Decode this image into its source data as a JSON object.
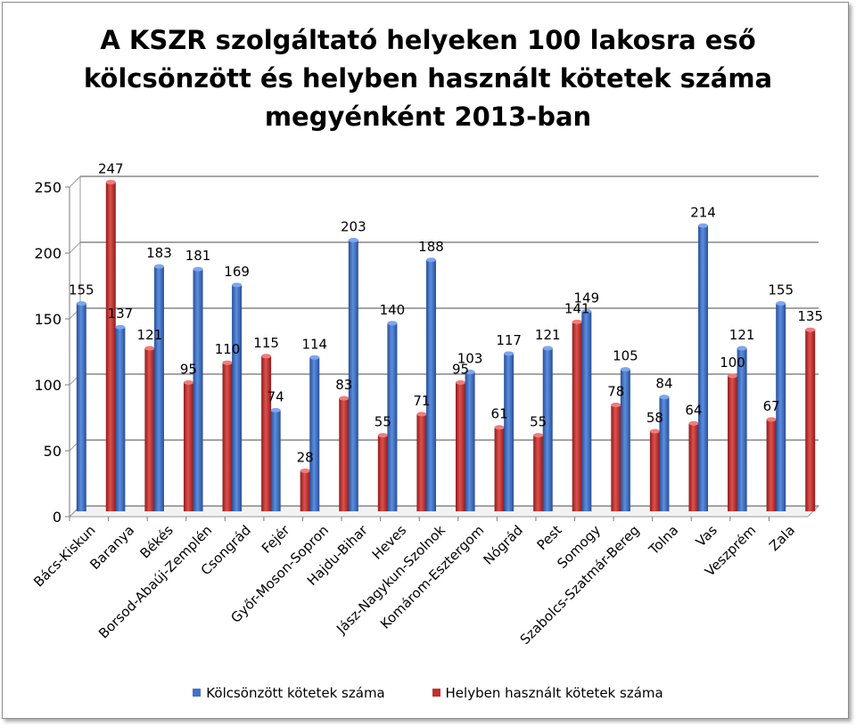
{
  "chart_data": {
    "type": "bar",
    "title_lines": [
      "A KSZR szolgáltató helyeken 100 lakosra eső",
      "kölcsönzött és helyben használt kötetek száma",
      "megyénként 2013-ban"
    ],
    "categories": [
      "Bács-Kiskun",
      "Baranya",
      "Békés",
      "Borsod-Abaúj-Zemplén",
      "Csongrád",
      "Fejér",
      "Győr-Moson-Sopron",
      "Hajdu-Bihar",
      "Heves",
      "Jász-Nagykun-Szolnok",
      "Komárom-Esztergom",
      "Nógrád",
      "Pest",
      "Somogy",
      "Szabolcs-Szatmár-Bereg",
      "Tolna",
      "Vas",
      "Veszprém",
      "Zala"
    ],
    "series": [
      {
        "name": "Kölcsönzött kötetek száma",
        "color": "#4472c4",
        "values": [
          155,
          137,
          183,
          181,
          169,
          74,
          114,
          203,
          140,
          188,
          103,
          117,
          121,
          149,
          105,
          84,
          214,
          121,
          155
        ]
      },
      {
        "name": "Helyben használt kötetek száma",
        "color": "#c0312f",
        "values": [
          247,
          121,
          95,
          110,
          115,
          28,
          83,
          55,
          71,
          95,
          61,
          55,
          141,
          78,
          58,
          64,
          100,
          67,
          135
        ]
      }
    ],
    "ylim": [
      0,
      250
    ],
    "yticks": [
      0,
      50,
      100,
      150,
      200,
      250
    ],
    "grid": true,
    "legend_position": "bottom"
  }
}
